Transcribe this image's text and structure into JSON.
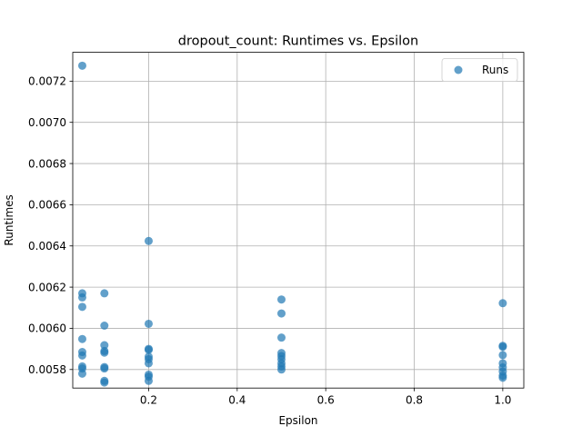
{
  "chart_data": {
    "type": "scatter",
    "title": "dropout_count: Runtimes vs. Epsilon",
    "xlabel": "Epsilon",
    "ylabel": "Runtimes",
    "xlim": [
      0.0285,
      1.0475
    ],
    "ylim": [
      0.00571,
      0.00734
    ],
    "x_ticks": [
      0.2,
      0.4,
      0.6,
      0.8,
      1.0
    ],
    "x_tick_labels": [
      "0.2",
      "0.4",
      "0.6",
      "0.8",
      "1.0"
    ],
    "y_ticks": [
      0.0058,
      0.006,
      0.0062,
      0.0064,
      0.0066,
      0.0068,
      0.007,
      0.0072
    ],
    "y_tick_labels": [
      "0.0058",
      "0.0060",
      "0.0062",
      "0.0064",
      "0.0066",
      "0.0068",
      "0.0070",
      "0.0072"
    ],
    "grid": true,
    "legend_position": "top-right",
    "series": [
      {
        "name": "Runs",
        "color": "#1f77b4",
        "points": [
          [
            0.05,
            0.007275
          ],
          [
            0.05,
            0.00617
          ],
          [
            0.05,
            0.00615
          ],
          [
            0.05,
            0.006104
          ],
          [
            0.05,
            0.005948
          ],
          [
            0.05,
            0.005885
          ],
          [
            0.05,
            0.005868
          ],
          [
            0.05,
            0.005815
          ],
          [
            0.05,
            0.005805
          ],
          [
            0.05,
            0.00578
          ],
          [
            0.1,
            0.00617
          ],
          [
            0.1,
            0.006013
          ],
          [
            0.1,
            0.005918
          ],
          [
            0.1,
            0.00589
          ],
          [
            0.1,
            0.005882
          ],
          [
            0.1,
            0.005812
          ],
          [
            0.1,
            0.005805
          ],
          [
            0.1,
            0.005745
          ],
          [
            0.1,
            0.005737
          ],
          [
            0.2,
            0.006424
          ],
          [
            0.2,
            0.006022
          ],
          [
            0.2,
            0.0059
          ],
          [
            0.2,
            0.005895
          ],
          [
            0.2,
            0.005862
          ],
          [
            0.2,
            0.00585
          ],
          [
            0.2,
            0.00583
          ],
          [
            0.2,
            0.005775
          ],
          [
            0.2,
            0.005765
          ],
          [
            0.2,
            0.005745
          ],
          [
            0.5,
            0.00614
          ],
          [
            0.5,
            0.006072
          ],
          [
            0.5,
            0.005955
          ],
          [
            0.5,
            0.00588
          ],
          [
            0.5,
            0.005865
          ],
          [
            0.5,
            0.00585
          ],
          [
            0.5,
            0.00583
          ],
          [
            0.5,
            0.005815
          ],
          [
            0.5,
            0.0058
          ],
          [
            1.0,
            0.006122
          ],
          [
            1.0,
            0.005915
          ],
          [
            1.0,
            0.00591
          ],
          [
            1.0,
            0.00587
          ],
          [
            1.0,
            0.00583
          ],
          [
            1.0,
            0.00581
          ],
          [
            1.0,
            0.00579
          ],
          [
            1.0,
            0.00577
          ],
          [
            1.0,
            0.00576
          ]
        ]
      }
    ]
  }
}
